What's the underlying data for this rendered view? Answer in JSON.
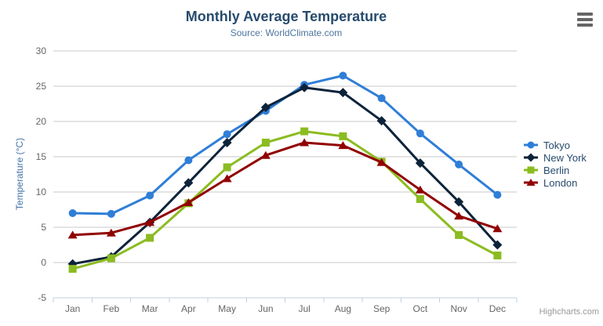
{
  "credits": "Highcharts.com",
  "colors": {
    "title": "#274b6d",
    "subtitle": "#4d759e",
    "axis_label": "#666666",
    "axis_line": "#c0d0e0",
    "gridline": "#c8c8c8",
    "y_axis_title": "#4572a7",
    "legend_text": "#274b6d",
    "credits": "#999999",
    "menu_icon": "#666666"
  },
  "chart_data": {
    "type": "line",
    "title": "Monthly Average Temperature",
    "subtitle": "Source: WorldClimate.com",
    "xlabel": "",
    "ylabel": "Temperature (°C)",
    "ylim": [
      -5,
      30
    ],
    "ytick_interval": 5,
    "yticks": [
      -5,
      0,
      5,
      10,
      15,
      20,
      25,
      30
    ],
    "grid": true,
    "legend_position": "right",
    "categories": [
      "Jan",
      "Feb",
      "Mar",
      "Apr",
      "May",
      "Jun",
      "Jul",
      "Aug",
      "Sep",
      "Oct",
      "Nov",
      "Dec"
    ],
    "series": [
      {
        "name": "Tokyo",
        "color": "#2f7ed8",
        "marker": "circle",
        "values": [
          7.0,
          6.9,
          9.5,
          14.5,
          18.2,
          21.5,
          25.2,
          26.5,
          23.3,
          18.3,
          13.9,
          9.6
        ]
      },
      {
        "name": "New York",
        "color": "#0d233a",
        "marker": "diamond",
        "values": [
          -0.2,
          0.8,
          5.7,
          11.3,
          17.0,
          22.0,
          24.8,
          24.1,
          20.1,
          14.1,
          8.6,
          2.5
        ]
      },
      {
        "name": "Berlin",
        "color": "#8bbc21",
        "marker": "square",
        "values": [
          -0.9,
          0.6,
          3.5,
          8.4,
          13.5,
          17.0,
          18.6,
          17.9,
          14.3,
          9.0,
          3.9,
          1.0
        ]
      },
      {
        "name": "London",
        "color": "#910000",
        "marker": "triangle",
        "values": [
          3.9,
          4.2,
          5.7,
          8.5,
          11.9,
          15.2,
          17.0,
          16.6,
          14.2,
          10.3,
          6.6,
          4.8
        ]
      }
    ]
  }
}
